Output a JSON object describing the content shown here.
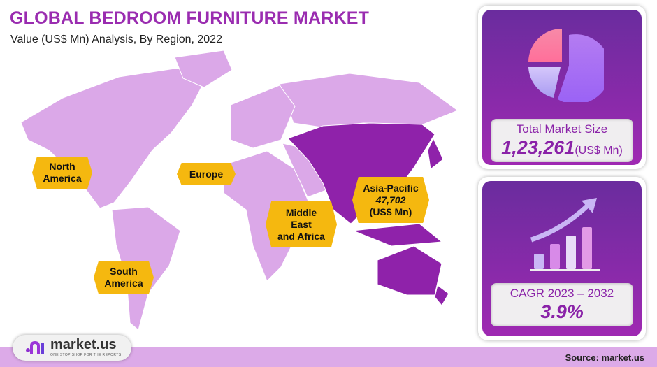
{
  "header": {
    "title": "GLOBAL BEDROOM FURNITURE MARKET",
    "subtitle": "Value (US$ Mn) Analysis, By Region, 2022"
  },
  "map": {
    "colors": {
      "region": "#dba8e8",
      "highlight": "#8f22aa",
      "label_bg": "#f5b80f"
    },
    "labels": {
      "north_america": [
        "North",
        "America"
      ],
      "europe": "Europe",
      "middle_east_africa": [
        "Middle",
        "East",
        "and Africa"
      ],
      "asia_pacific": {
        "name": "Asia-Pacific",
        "value": "47,702",
        "unit": "(US$ Mn)"
      },
      "south_america": [
        "South",
        "America"
      ]
    }
  },
  "market_size": {
    "icon": "pie-chart-icon",
    "label": "Total Market Size",
    "value": "1,23,261",
    "unit": "(US$ Mn)"
  },
  "cagr": {
    "icon": "growth-bar-chart-icon",
    "label": "CAGR 2023 – 2032",
    "value": "3.9%"
  },
  "footer": {
    "logo_text": "market.us",
    "logo_tagline": "ONE STOP SHOP FOR THE REPORTS",
    "source": "Source: market.us"
  }
}
